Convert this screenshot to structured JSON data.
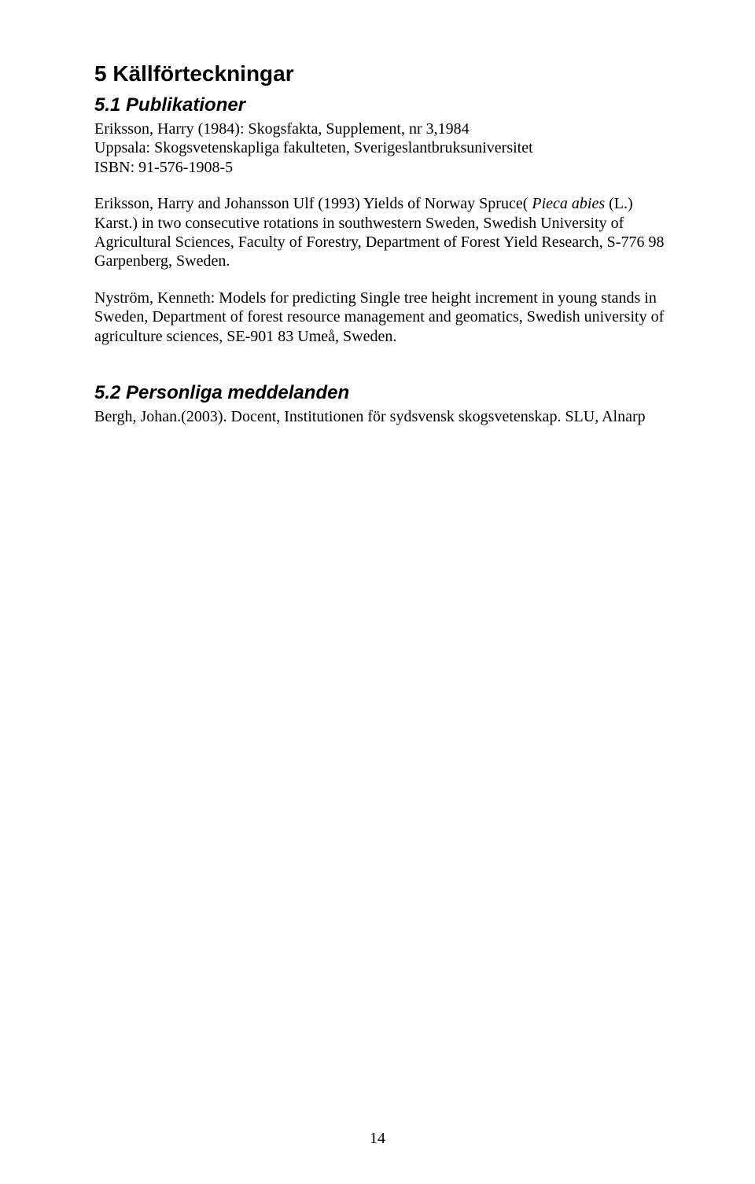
{
  "section5": {
    "title": "5 Källförteckningar",
    "sub1": {
      "title": "5.1 Publikationer",
      "p1_pre": "Eriksson, Harry (1984): Skogsfakta, Supplement, nr 3,1984\nUppsala: Skogsvetenskapliga fakulteten, Sverigeslantbruksuniversitet\nISBN: 91-576-1908-5",
      "p2_pre": "Eriksson, Harry and Johansson Ulf (1993) Yields of Norway Spruce( ",
      "p2_ital": "Pieca abies ",
      "p2_post": "(L.) Karst.) in two consecutive rotations in southwestern Sweden, Swedish University of Agricultural Sciences, Faculty of Forestry, Department of Forest Yield Research, S-776 98 Garpenberg, Sweden.",
      "p3": "Nyström, Kenneth: Models for predicting Single tree height increment in young stands in Sweden, Department of forest resource management and geomatics, Swedish university of agriculture sciences, SE-901 83 Umeå, Sweden."
    },
    "sub2": {
      "title": "5.2 Personliga meddelanden",
      "p1": "Bergh, Johan.(2003). Docent, Institutionen för sydsvensk skogsvetenskap. SLU, Alnarp"
    }
  },
  "page_number": "14"
}
